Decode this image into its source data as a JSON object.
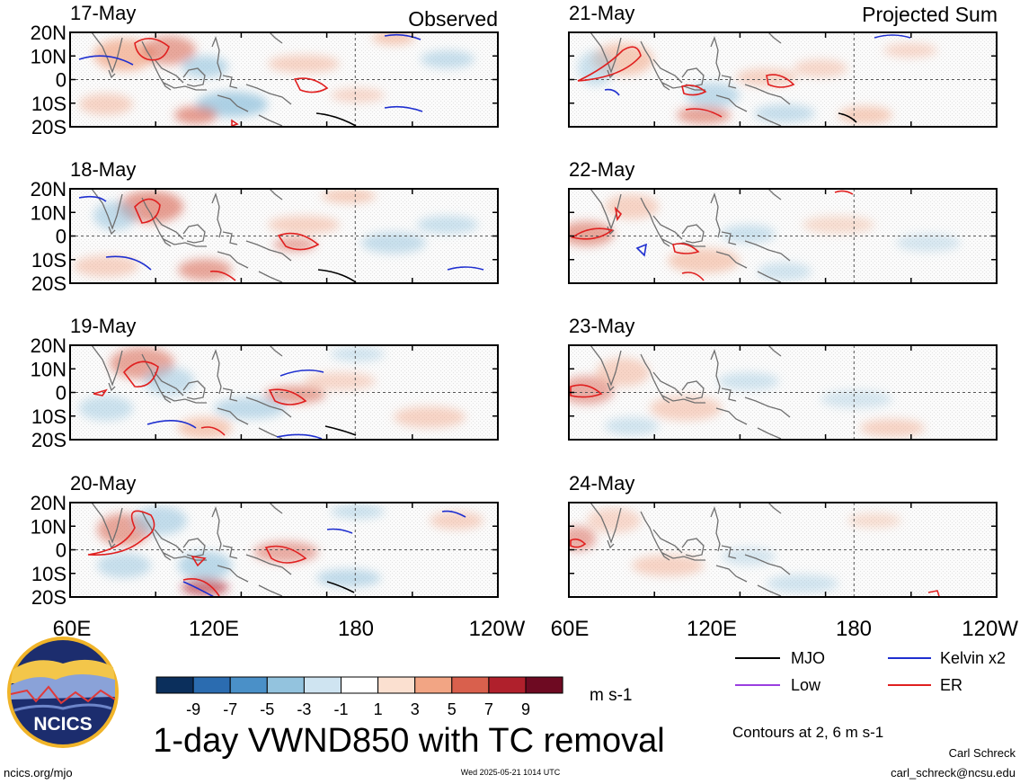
{
  "header": {
    "observed_label": "Observed",
    "projected_label": "Projected Sum"
  },
  "panels": [
    {
      "date": "17-May",
      "group": "observed"
    },
    {
      "date": "18-May",
      "group": "observed"
    },
    {
      "date": "19-May",
      "group": "observed"
    },
    {
      "date": "20-May",
      "group": "observed"
    },
    {
      "date": "21-May",
      "group": "projected"
    },
    {
      "date": "22-May",
      "group": "projected"
    },
    {
      "date": "23-May",
      "group": "projected"
    },
    {
      "date": "24-May",
      "group": "projected"
    }
  ],
  "axes": {
    "lat_labels": [
      "20N",
      "10N",
      "0",
      "10S",
      "20S"
    ],
    "lon_labels": [
      "60E",
      "120E",
      "180",
      "120W"
    ]
  },
  "colorbar": {
    "colors": [
      "#0b2f5c",
      "#2b6cb0",
      "#4a90c8",
      "#93c3de",
      "#cfe4f1",
      "#ffffff",
      "#fbe0d0",
      "#f2a584",
      "#d9604d",
      "#b0202c",
      "#6e0a22"
    ],
    "tick_labels": [
      "-9",
      "-7",
      "-5",
      "-3",
      "-1",
      "1",
      "3",
      "5",
      "7",
      "9"
    ],
    "units": "m s-1"
  },
  "legend": {
    "items": [
      {
        "label": "MJO",
        "color": "#000000"
      },
      {
        "label": "Kelvin x2",
        "color": "#1f2fd0"
      },
      {
        "label": "Low",
        "color": "#9a3fe0"
      },
      {
        "label": "ER",
        "color": "#e02020"
      }
    ],
    "contours_note": "Contours at 2, 6 m s-1"
  },
  "title": "1-day VWND850 with TC removal",
  "logo": {
    "text": "NCICS"
  },
  "footer": {
    "url": "ncics.org/mjo",
    "timestamp": "Wed 2025-05-21 1014 UTC",
    "author": "Carl Schreck",
    "email": "carl_schreck@ncsu.edu"
  }
}
